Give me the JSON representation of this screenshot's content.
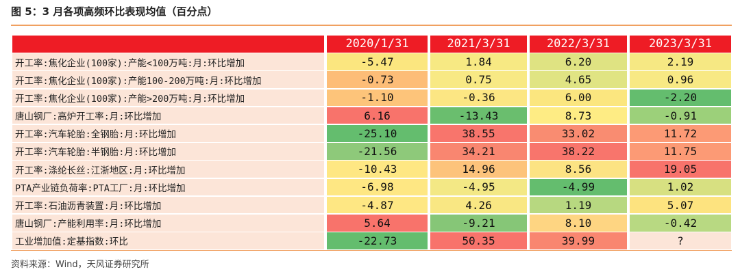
{
  "title": "图 5：3 月各项高频环比表现均值（百分点）",
  "source": "资料来源：Wind，天风证券研究所",
  "table": {
    "headers": [
      "",
      "2020/1/31",
      "2021/3/31",
      "2022/3/31",
      "2023/3/31"
    ],
    "rows": [
      {
        "label": "开工率:焦化企业(100家):产能<100万吨:月:环比增加",
        "values": [
          "-5.47",
          "1.84",
          "6.20",
          "2.19"
        ],
        "colors": [
          "#fbe67f",
          "#f7e983",
          "#dfe382",
          "#f6e883"
        ]
      },
      {
        "label": "开工率:焦化企业(100家):产能100-200万吨:月:环比增加",
        "values": [
          "-0.73",
          "0.75",
          "4.65",
          "0.96"
        ],
        "colors": [
          "#fdbd77",
          "#f8e984",
          "#e0e483",
          "#f8e984"
        ]
      },
      {
        "label": "开工率:焦化企业(100家):产能>200万吨:月:环比增加",
        "values": [
          "-1.10",
          "-0.36",
          "6.00",
          "-2.20"
        ],
        "colors": [
          "#fdc47a",
          "#fce683",
          "#fbe67f",
          "#64bd6e"
        ]
      },
      {
        "label": "唐山钢厂:高炉开工率:月:环比增加",
        "values": [
          "6.16",
          "-13.43",
          "8.73",
          "-0.91"
        ],
        "colors": [
          "#f8736b",
          "#6abe6e",
          "#feec84",
          "#9cd07a"
        ]
      },
      {
        "label": "开工率:汽车轮胎:全钢胎:月:环比增加",
        "values": [
          "-25.10",
          "38.55",
          "33.02",
          "11.72"
        ],
        "colors": [
          "#64bd6e",
          "#f8756c",
          "#f98c71",
          "#fc9a75"
        ]
      },
      {
        "label": "开工率:汽车轮胎:半钢胎:月:环比增加",
        "values": [
          "-21.56",
          "34.21",
          "38.22",
          "11.75"
        ],
        "colors": [
          "#8ec97a",
          "#f98670",
          "#f8756c",
          "#fc9a75"
        ]
      },
      {
        "label": "开工率:涤纶长丝:江浙地区:月:环比增加",
        "values": [
          "-10.43",
          "14.96",
          "8.56",
          "19.05"
        ],
        "colors": [
          "#fee783",
          "#fdc37b",
          "#fce383",
          "#f8736b"
        ]
      },
      {
        "label": "PTA产业链负荷率:PTA工厂:月:环比增加",
        "values": [
          "-6.98",
          "-4.95",
          "-4.99",
          "1.02"
        ],
        "colors": [
          "#fee783",
          "#f3e885",
          "#64bd6e",
          "#d7e081"
        ]
      },
      {
        "label": "开工率:石油沥青装置:月:环比增加",
        "values": [
          "-4.87",
          "4.26",
          "1.19",
          "5.07"
        ],
        "colors": [
          "#fee783",
          "#f9e783",
          "#b7d880",
          "#fde37f"
        ]
      },
      {
        "label": "唐山钢厂:产能利用率:月:环比增加",
        "values": [
          "5.64",
          "-9.21",
          "8.10",
          "-0.42"
        ],
        "colors": [
          "#f8736b",
          "#86c677",
          "#fed582",
          "#b8d982"
        ]
      },
      {
        "label": "工业增加值:定基指数:环比",
        "values": [
          "-22.73",
          "50.35",
          "39.99",
          "?"
        ],
        "colors": [
          "#64bd6e",
          "#f8736b",
          "#f98670",
          "#fce5d8"
        ]
      }
    ]
  }
}
